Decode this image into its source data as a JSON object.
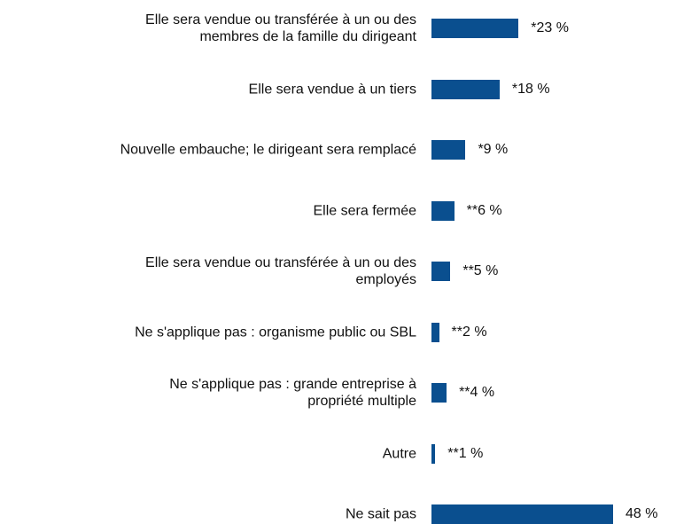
{
  "chart_data": {
    "type": "bar",
    "orientation": "horizontal",
    "categories": [
      "Elle sera vendue ou transférée à un ou des\nmembres de la famille du dirigeant",
      "Elle sera vendue à un tiers",
      "Nouvelle embauche; le dirigeant sera remplacé",
      "Elle sera fermée",
      "Elle sera vendue ou transférée à un ou des\nemployés",
      "Ne s'applique pas : organisme public ou SBL",
      "Ne s'applique pas : grande entreprise à\npropriété multiple",
      "Autre",
      "Ne sait pas"
    ],
    "values": [
      23,
      18,
      9,
      6,
      5,
      2,
      4,
      1,
      48
    ],
    "value_labels": [
      "*23 %",
      "*18 %",
      "*9 %",
      "**6 %",
      "**5 %",
      "**2 %",
      "**4 %",
      "**1 %",
      "48 %"
    ],
    "color": "#0a4f8f"
  }
}
